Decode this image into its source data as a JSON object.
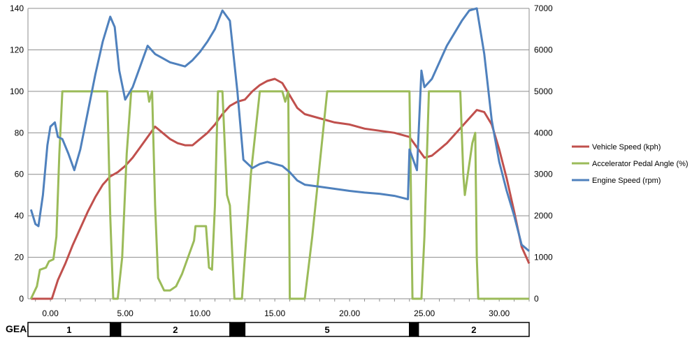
{
  "chart_data": {
    "type": "line",
    "title": "",
    "xlabel": "",
    "x_ticks": [
      "0.00",
      "5.00",
      "10.00",
      "15.00",
      "20.00",
      "25.00",
      "30.00"
    ],
    "xlim": [
      -1.5,
      32.0
    ],
    "left_axis": {
      "ylim": [
        0,
        140
      ],
      "ticks": [
        "0",
        "20",
        "40",
        "60",
        "80",
        "100",
        "120",
        "140"
      ]
    },
    "right_axis": {
      "ylim": [
        0,
        7000
      ],
      "ticks": [
        "0",
        "1000",
        "2000",
        "3000",
        "4000",
        "5000",
        "6000",
        "7000"
      ]
    },
    "grid": "horizontal",
    "legend": "right",
    "series": [
      {
        "name": "Vehicle Speed (kph)",
        "axis": "left",
        "color": "#c0504d",
        "points": [
          [
            -1.3,
            0
          ],
          [
            0.1,
            0
          ],
          [
            0.5,
            9
          ],
          [
            1.0,
            17
          ],
          [
            1.5,
            26
          ],
          [
            2.0,
            34
          ],
          [
            2.5,
            42
          ],
          [
            3.0,
            49
          ],
          [
            3.5,
            55
          ],
          [
            4.0,
            59
          ],
          [
            4.5,
            61
          ],
          [
            5.0,
            64
          ],
          [
            5.5,
            68
          ],
          [
            6.0,
            73
          ],
          [
            6.5,
            78
          ],
          [
            7.0,
            83
          ],
          [
            7.5,
            80
          ],
          [
            8.0,
            77
          ],
          [
            8.5,
            75
          ],
          [
            9.0,
            74
          ],
          [
            9.5,
            74
          ],
          [
            10.0,
            77
          ],
          [
            10.5,
            80
          ],
          [
            11.0,
            84
          ],
          [
            11.5,
            89
          ],
          [
            12.0,
            93
          ],
          [
            12.5,
            95
          ],
          [
            13.0,
            96
          ],
          [
            13.5,
            100
          ],
          [
            14.0,
            103
          ],
          [
            14.5,
            105
          ],
          [
            15.0,
            106
          ],
          [
            15.5,
            104
          ],
          [
            16.0,
            98
          ],
          [
            16.5,
            92
          ],
          [
            17.0,
            89
          ],
          [
            18.0,
            87
          ],
          [
            19.0,
            85
          ],
          [
            20.0,
            84
          ],
          [
            21.0,
            82
          ],
          [
            22.0,
            81
          ],
          [
            23.0,
            80
          ],
          [
            24.0,
            78
          ],
          [
            24.5,
            73
          ],
          [
            25.0,
            68
          ],
          [
            25.5,
            69
          ],
          [
            26.0,
            72
          ],
          [
            26.5,
            75
          ],
          [
            27.0,
            79
          ],
          [
            27.5,
            83
          ],
          [
            28.0,
            87
          ],
          [
            28.5,
            91
          ],
          [
            29.0,
            90
          ],
          [
            29.5,
            84
          ],
          [
            30.0,
            72
          ],
          [
            30.5,
            58
          ],
          [
            31.0,
            42
          ],
          [
            31.5,
            25
          ],
          [
            32.0,
            17
          ]
        ]
      },
      {
        "name": "Accelerator Pedal Angle (%)",
        "axis": "left",
        "color": "#9bbb59",
        "points": [
          [
            -1.3,
            0
          ],
          [
            -0.9,
            6
          ],
          [
            -0.7,
            14
          ],
          [
            -0.3,
            15
          ],
          [
            -0.1,
            18
          ],
          [
            0.2,
            19
          ],
          [
            0.4,
            30
          ],
          [
            0.6,
            70
          ],
          [
            0.8,
            100
          ],
          [
            3.8,
            100
          ],
          [
            4.0,
            40
          ],
          [
            4.2,
            0
          ],
          [
            4.5,
            0
          ],
          [
            4.8,
            20
          ],
          [
            5.1,
            70
          ],
          [
            5.4,
            100
          ],
          [
            6.5,
            100
          ],
          [
            6.6,
            95
          ],
          [
            6.8,
            100
          ],
          [
            7.0,
            45
          ],
          [
            7.2,
            10
          ],
          [
            7.6,
            4
          ],
          [
            8.0,
            4
          ],
          [
            8.4,
            6
          ],
          [
            8.8,
            12
          ],
          [
            9.2,
            20
          ],
          [
            9.6,
            28
          ],
          [
            9.7,
            35
          ],
          [
            10.4,
            35
          ],
          [
            10.6,
            15
          ],
          [
            10.8,
            14
          ],
          [
            11.0,
            45
          ],
          [
            11.2,
            100
          ],
          [
            11.5,
            100
          ],
          [
            11.8,
            50
          ],
          [
            12.0,
            45
          ],
          [
            12.3,
            0
          ],
          [
            12.8,
            0
          ],
          [
            13.0,
            20
          ],
          [
            13.4,
            60
          ],
          [
            14.0,
            100
          ],
          [
            15.5,
            100
          ],
          [
            15.7,
            95
          ],
          [
            15.9,
            100
          ],
          [
            16.0,
            0
          ],
          [
            17.0,
            0
          ],
          [
            17.5,
            30
          ],
          [
            18.0,
            65
          ],
          [
            18.5,
            100
          ],
          [
            24.0,
            100
          ],
          [
            24.2,
            0
          ],
          [
            24.8,
            0
          ],
          [
            25.0,
            30
          ],
          [
            25.3,
            100
          ],
          [
            27.4,
            100
          ],
          [
            27.6,
            60
          ],
          [
            27.7,
            50
          ],
          [
            28.0,
            65
          ],
          [
            28.2,
            75
          ],
          [
            28.4,
            80
          ],
          [
            28.5,
            20
          ],
          [
            28.6,
            0
          ],
          [
            32.0,
            0
          ]
        ]
      },
      {
        "name": "Engine Speed (rpm)",
        "axis": "right",
        "color": "#4f81bd",
        "points": [
          [
            -1.3,
            2150
          ],
          [
            -1.0,
            1800
          ],
          [
            -0.8,
            1750
          ],
          [
            -0.5,
            2500
          ],
          [
            -0.2,
            3700
          ],
          [
            0.0,
            4150
          ],
          [
            0.3,
            4250
          ],
          [
            0.5,
            3900
          ],
          [
            0.8,
            3850
          ],
          [
            1.2,
            3500
          ],
          [
            1.6,
            3100
          ],
          [
            2.0,
            3600
          ],
          [
            2.5,
            4500
          ],
          [
            3.0,
            5400
          ],
          [
            3.5,
            6200
          ],
          [
            4.0,
            6800
          ],
          [
            4.3,
            6550
          ],
          [
            4.6,
            5500
          ],
          [
            5.0,
            4800
          ],
          [
            5.5,
            5100
          ],
          [
            6.0,
            5600
          ],
          [
            6.5,
            6100
          ],
          [
            7.0,
            5900
          ],
          [
            7.5,
            5800
          ],
          [
            8.0,
            5700
          ],
          [
            8.5,
            5650
          ],
          [
            9.0,
            5600
          ],
          [
            9.5,
            5750
          ],
          [
            10.0,
            5950
          ],
          [
            10.5,
            6200
          ],
          [
            11.0,
            6500
          ],
          [
            11.5,
            6950
          ],
          [
            12.0,
            6700
          ],
          [
            12.5,
            5000
          ],
          [
            12.9,
            3350
          ],
          [
            13.5,
            3150
          ],
          [
            14.0,
            3250
          ],
          [
            14.5,
            3300
          ],
          [
            15.0,
            3250
          ],
          [
            15.5,
            3200
          ],
          [
            16.0,
            3050
          ],
          [
            16.5,
            2850
          ],
          [
            17.0,
            2750
          ],
          [
            18.0,
            2700
          ],
          [
            19.0,
            2650
          ],
          [
            20.0,
            2600
          ],
          [
            21.0,
            2560
          ],
          [
            22.0,
            2530
          ],
          [
            23.0,
            2480
          ],
          [
            23.9,
            2400
          ],
          [
            24.0,
            3600
          ],
          [
            24.3,
            3300
          ],
          [
            24.5,
            3100
          ],
          [
            24.8,
            5500
          ],
          [
            25.0,
            5100
          ],
          [
            25.5,
            5300
          ],
          [
            26.0,
            5700
          ],
          [
            26.5,
            6100
          ],
          [
            27.0,
            6400
          ],
          [
            27.5,
            6700
          ],
          [
            28.0,
            6950
          ],
          [
            28.5,
            7000
          ],
          [
            29.0,
            5900
          ],
          [
            29.5,
            4300
          ],
          [
            30.0,
            3300
          ],
          [
            30.5,
            2600
          ],
          [
            31.0,
            2000
          ],
          [
            31.5,
            1300
          ],
          [
            32.0,
            1150
          ]
        ]
      }
    ]
  },
  "gear_strip": {
    "label": "GEAR",
    "segments": [
      {
        "label": "1",
        "start": -1.5,
        "end": 4.0,
        "fill": "#ffffff"
      },
      {
        "label": "",
        "start": 4.0,
        "end": 4.7,
        "fill": "#000000"
      },
      {
        "label": "2",
        "start": 4.7,
        "end": 12.0,
        "fill": "#ffffff"
      },
      {
        "label": "",
        "start": 12.0,
        "end": 13.0,
        "fill": "#000000"
      },
      {
        "label": "5",
        "start": 13.0,
        "end": 24.0,
        "fill": "#ffffff"
      },
      {
        "label": "",
        "start": 24.0,
        "end": 24.6,
        "fill": "#000000"
      },
      {
        "label": "2",
        "start": 24.6,
        "end": 32.0,
        "fill": "#ffffff"
      }
    ]
  }
}
